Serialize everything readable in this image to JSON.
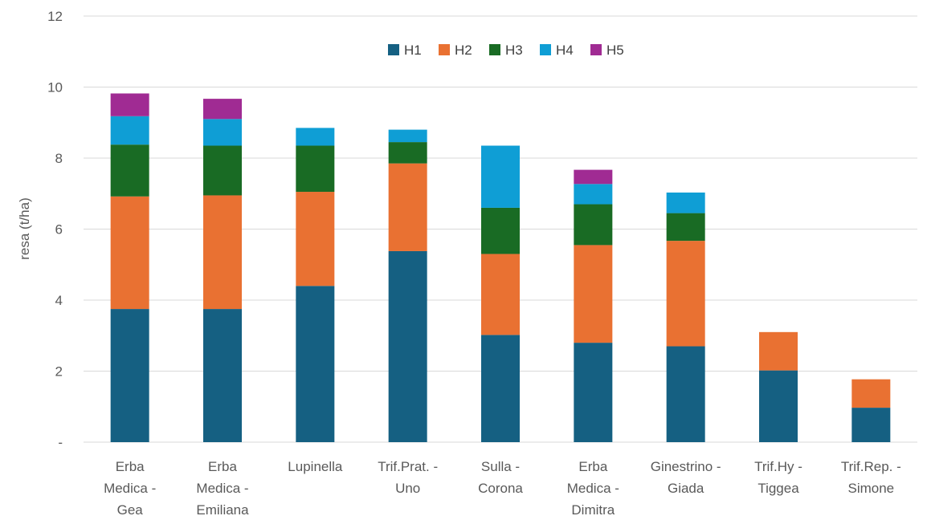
{
  "chart_data": {
    "type": "bar",
    "stacked": true,
    "title": "",
    "xlabel": "",
    "ylabel": "resa (t/ha)",
    "ylim": [
      0,
      12
    ],
    "yticks": [
      0,
      2,
      4,
      6,
      8,
      10,
      12
    ],
    "ytick_labels": [
      "-",
      "2",
      "4",
      "6",
      "8",
      "10",
      "12"
    ],
    "grid": true,
    "legend_position": "top-center",
    "categories": [
      [
        "Erba",
        "Medica -",
        "Gea"
      ],
      [
        "Erba",
        "Medica -",
        "Emiliana"
      ],
      [
        "Lupinella"
      ],
      [
        "Trif.Prat. -",
        "Uno"
      ],
      [
        "Sulla -",
        "Corona"
      ],
      [
        "Erba",
        "Medica -",
        "Dimitra"
      ],
      [
        "Ginestrino -",
        "Giada"
      ],
      [
        "Trif.Hy -",
        "Tiggea"
      ],
      [
        "Trif.Rep. -",
        "Simone"
      ]
    ],
    "series": [
      {
        "name": "H1",
        "color": "#156082",
        "values": [
          3.75,
          3.75,
          4.4,
          5.38,
          3.02,
          2.8,
          2.7,
          2.02,
          0.97
        ]
      },
      {
        "name": "H2",
        "color": "#E97132",
        "values": [
          3.17,
          3.2,
          2.65,
          2.47,
          2.28,
          2.75,
          2.97,
          1.08,
          0.8
        ]
      },
      {
        "name": "H3",
        "color": "#196B24",
        "values": [
          1.46,
          1.4,
          1.3,
          0.6,
          1.3,
          1.15,
          0.78,
          0,
          0
        ]
      },
      {
        "name": "H4",
        "color": "#0F9ED5",
        "values": [
          0.8,
          0.75,
          0.5,
          0.35,
          1.75,
          0.57,
          0.58,
          0,
          0
        ]
      },
      {
        "name": "H5",
        "color": "#A02B93",
        "values": [
          0.64,
          0.57,
          0,
          0,
          0,
          0.4,
          0,
          0,
          0
        ]
      }
    ]
  }
}
